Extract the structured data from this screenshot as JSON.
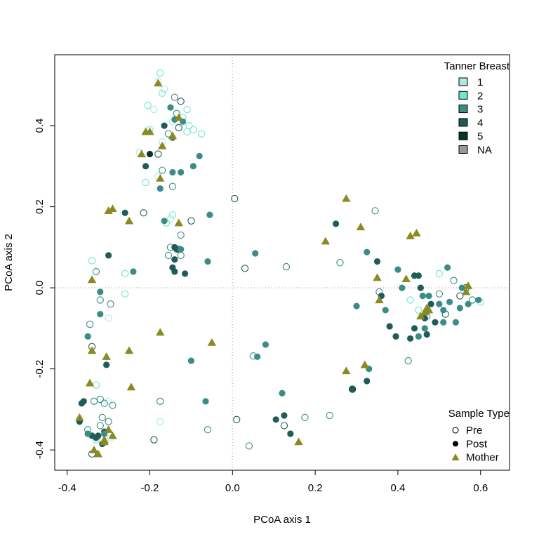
{
  "chart_data": {
    "type": "scatter",
    "title": "",
    "xlabel": "PCoA axis 1",
    "ylabel": "PCoA axis 2",
    "xlim": [
      -0.43,
      0.67
    ],
    "ylim": [
      -0.45,
      0.575
    ],
    "x_ticks": [
      -0.4,
      -0.2,
      0.0,
      0.2,
      0.4,
      0.6
    ],
    "x_tick_labels": [
      "-0.4",
      "-0.2",
      "0.0",
      "0.2",
      "0.4",
      "0.6"
    ],
    "y_ticks": [
      -0.4,
      -0.2,
      0.0,
      0.2,
      0.4
    ],
    "y_tick_labels": [
      "-0.4",
      "-0.2",
      "0.0",
      "0.2",
      "0.4"
    ],
    "reference_lines": {
      "x": 0,
      "y": 0,
      "style": "dotted",
      "color": "#bbbbbb"
    },
    "color_legend": {
      "title": "Tanner Breast",
      "position": "top-right",
      "entries": [
        {
          "label": "1",
          "color": "#aee8de"
        },
        {
          "label": "2",
          "color": "#6fe8d2"
        },
        {
          "label": "3",
          "color": "#3a8c87"
        },
        {
          "label": "4",
          "color": "#1f5c59"
        },
        {
          "label": "5",
          "color": "#0a332e"
        },
        {
          "label": "NA",
          "color": "#999999"
        }
      ]
    },
    "shape_legend": {
      "title": "Sample Type",
      "position": "bottom-right",
      "entries": [
        {
          "label": "Pre",
          "shape": "open-circle"
        },
        {
          "label": "Post",
          "shape": "filled-circle"
        },
        {
          "label": "Mother",
          "shape": "triangle"
        }
      ]
    },
    "mother_color": "#8b8a22",
    "series": [
      {
        "name": "Pre",
        "shape": "open-circle",
        "points": [
          [
            -0.175,
            0.53
          ],
          [
            -0.18,
            0.51
          ],
          [
            -0.165,
            0.49
          ],
          [
            -0.17,
            0.48
          ],
          [
            -0.14,
            0.47
          ],
          [
            -0.125,
            0.46
          ],
          [
            -0.11,
            0.44
          ],
          [
            -0.135,
            0.43
          ],
          [
            -0.12,
            0.42
          ],
          [
            -0.13,
            0.41
          ],
          [
            -0.105,
            0.4
          ],
          [
            -0.095,
            0.39
          ],
          [
            -0.075,
            0.38
          ],
          [
            -0.13,
            0.395
          ],
          [
            -0.155,
            0.38
          ],
          [
            -0.145,
            0.41
          ],
          [
            -0.19,
            0.44
          ],
          [
            -0.205,
            0.45
          ],
          [
            -0.2,
            0.39
          ],
          [
            -0.17,
            0.36
          ],
          [
            -0.11,
            0.385
          ],
          [
            -0.225,
            0.335
          ],
          [
            -0.18,
            0.33
          ],
          [
            -0.17,
            0.29
          ],
          [
            -0.18,
            0.275
          ],
          [
            -0.21,
            0.26
          ],
          [
            -0.145,
            0.25
          ],
          [
            -0.215,
            0.185
          ],
          [
            -0.145,
            0.18
          ],
          [
            -0.15,
            0.17
          ],
          [
            -0.1,
            0.165
          ],
          [
            -0.16,
            0.16
          ],
          [
            -0.125,
            0.13
          ],
          [
            -0.15,
            0.1
          ],
          [
            -0.13,
            0.095
          ],
          [
            -0.155,
            0.08
          ],
          [
            -0.125,
            0.08
          ],
          [
            0.005,
            0.22
          ],
          [
            0.03,
            0.048
          ],
          [
            0.13,
            0.052
          ],
          [
            0.26,
            0.062
          ],
          [
            0.345,
            0.19
          ],
          [
            -0.34,
            0.067
          ],
          [
            -0.33,
            0.04
          ],
          [
            -0.26,
            0.035
          ],
          [
            -0.26,
            -0.015
          ],
          [
            -0.295,
            -0.04
          ],
          [
            -0.32,
            -0.03
          ],
          [
            -0.3,
            -0.075
          ],
          [
            -0.345,
            -0.09
          ],
          [
            -0.34,
            -0.145
          ],
          [
            -0.33,
            -0.24
          ],
          [
            -0.335,
            -0.28
          ],
          [
            -0.32,
            -0.275
          ],
          [
            -0.3,
            -0.28
          ],
          [
            -0.31,
            -0.285
          ],
          [
            -0.29,
            -0.29
          ],
          [
            -0.315,
            -0.32
          ],
          [
            -0.3,
            -0.33
          ],
          [
            -0.32,
            -0.34
          ],
          [
            -0.33,
            -0.375
          ],
          [
            -0.34,
            -0.41
          ],
          [
            -0.295,
            -0.37
          ],
          [
            -0.35,
            -0.35
          ],
          [
            -0.175,
            -0.28
          ],
          [
            -0.175,
            -0.33
          ],
          [
            -0.19,
            -0.375
          ],
          [
            -0.06,
            -0.35
          ],
          [
            0.01,
            -0.325
          ],
          [
            0.05,
            -0.168
          ],
          [
            0.04,
            -0.39
          ],
          [
            0.125,
            -0.34
          ],
          [
            0.175,
            -0.32
          ],
          [
            0.235,
            -0.315
          ],
          [
            0.29,
            -0.25
          ],
          [
            0.425,
            -0.18
          ],
          [
            0.355,
            -0.01
          ],
          [
            0.45,
            -0.055
          ],
          [
            0.5,
            -0.015
          ],
          [
            0.515,
            -0.065
          ],
          [
            0.55,
            -0.02
          ],
          [
            0.565,
            0.0
          ],
          [
            0.58,
            -0.03
          ],
          [
            0.6,
            -0.035
          ],
          [
            0.5,
            0.035
          ],
          [
            0.535,
            0.018
          ],
          [
            0.47,
            -0.07
          ],
          [
            0.43,
            -0.03
          ]
        ]
      },
      {
        "name": "Post",
        "shape": "filled-circle",
        "points": [
          [
            -0.15,
            0.445
          ],
          [
            -0.14,
            0.415
          ],
          [
            -0.165,
            0.4
          ],
          [
            -0.12,
            0.41
          ],
          [
            -0.145,
            0.37
          ],
          [
            -0.2,
            0.33
          ],
          [
            -0.21,
            0.3
          ],
          [
            -0.08,
            0.325
          ],
          [
            -0.095,
            0.3
          ],
          [
            -0.145,
            0.285
          ],
          [
            -0.125,
            0.285
          ],
          [
            -0.175,
            0.245
          ],
          [
            -0.165,
            0.165
          ],
          [
            -0.055,
            0.18
          ],
          [
            -0.14,
            0.1
          ],
          [
            -0.135,
            0.095
          ],
          [
            -0.125,
            0.095
          ],
          [
            -0.14,
            0.07
          ],
          [
            -0.145,
            0.05
          ],
          [
            -0.14,
            0.04
          ],
          [
            -0.115,
            0.035
          ],
          [
            -0.06,
            0.065
          ],
          [
            -0.24,
            0.04
          ],
          [
            -0.26,
            0.185
          ],
          [
            -0.3,
            0.08
          ],
          [
            -0.32,
            -0.01
          ],
          [
            -0.32,
            -0.065
          ],
          [
            -0.35,
            -0.12
          ],
          [
            -0.305,
            -0.19
          ],
          [
            -0.36,
            -0.28
          ],
          [
            -0.365,
            -0.285
          ],
          [
            -0.37,
            -0.33
          ],
          [
            -0.34,
            -0.365
          ],
          [
            -0.325,
            -0.365
          ],
          [
            -0.31,
            -0.355
          ],
          [
            -0.31,
            -0.36
          ],
          [
            -0.33,
            -0.37
          ],
          [
            -0.35,
            -0.36
          ],
          [
            -0.315,
            -0.385
          ],
          [
            -0.1,
            -0.18
          ],
          [
            -0.065,
            -0.28
          ],
          [
            0.055,
            0.085
          ],
          [
            0.08,
            -0.14
          ],
          [
            0.06,
            -0.17
          ],
          [
            0.12,
            -0.26
          ],
          [
            0.125,
            -0.315
          ],
          [
            0.105,
            -0.325
          ],
          [
            0.14,
            -0.36
          ],
          [
            0.25,
            0.158
          ],
          [
            0.3,
            -0.045
          ],
          [
            0.325,
            -0.23
          ],
          [
            0.325,
            0.088
          ],
          [
            0.33,
            -0.2
          ],
          [
            0.35,
            0.065
          ],
          [
            0.36,
            -0.02
          ],
          [
            0.37,
            -0.055
          ],
          [
            0.38,
            -0.095
          ],
          [
            0.395,
            -0.12
          ],
          [
            0.41,
            0.0
          ],
          [
            0.4,
            0.045
          ],
          [
            0.43,
            -0.125
          ],
          [
            0.44,
            0.03
          ],
          [
            0.45,
            0.03
          ],
          [
            0.455,
            0.0
          ],
          [
            0.46,
            -0.02
          ],
          [
            0.475,
            -0.02
          ],
          [
            0.48,
            -0.04
          ],
          [
            0.49,
            -0.085
          ],
          [
            0.5,
            -0.04
          ],
          [
            0.51,
            -0.055
          ],
          [
            0.525,
            -0.035
          ],
          [
            0.54,
            -0.085
          ],
          [
            0.55,
            -0.05
          ],
          [
            0.555,
            0.0
          ],
          [
            0.57,
            -0.04
          ],
          [
            0.52,
            0.05
          ],
          [
            0.465,
            -0.075
          ],
          [
            0.44,
            -0.1
          ],
          [
            0.465,
            -0.1
          ],
          [
            0.45,
            -0.12
          ],
          [
            0.47,
            -0.115
          ],
          [
            0.29,
            -0.25
          ],
          [
            0.51,
            -0.085
          ],
          [
            0.595,
            -0.03
          ]
        ]
      },
      {
        "name": "Mother",
        "shape": "triangle",
        "points": [
          [
            -0.18,
            0.505
          ],
          [
            -0.13,
            0.42
          ],
          [
            -0.2,
            0.385
          ],
          [
            -0.21,
            0.385
          ],
          [
            -0.17,
            0.35
          ],
          [
            -0.145,
            0.375
          ],
          [
            -0.22,
            0.33
          ],
          [
            -0.175,
            0.27
          ],
          [
            -0.13,
            0.16
          ],
          [
            -0.3,
            0.19
          ],
          [
            -0.29,
            0.195
          ],
          [
            -0.25,
            0.165
          ],
          [
            -0.34,
            0.02
          ],
          [
            -0.175,
            -0.11
          ],
          [
            -0.25,
            -0.155
          ],
          [
            -0.05,
            -0.135
          ],
          [
            -0.34,
            -0.155
          ],
          [
            -0.305,
            -0.17
          ],
          [
            -0.345,
            -0.235
          ],
          [
            -0.245,
            -0.245
          ],
          [
            -0.37,
            -0.32
          ],
          [
            -0.335,
            -0.4
          ],
          [
            -0.325,
            -0.41
          ],
          [
            -0.31,
            -0.375
          ],
          [
            -0.3,
            -0.35
          ],
          [
            -0.29,
            -0.365
          ],
          [
            -0.31,
            -0.38
          ],
          [
            0.16,
            -0.38
          ],
          [
            0.225,
            0.115
          ],
          [
            0.275,
            0.22
          ],
          [
            0.31,
            0.15
          ],
          [
            0.275,
            -0.205
          ],
          [
            0.32,
            -0.19
          ],
          [
            0.355,
            -0.03
          ],
          [
            0.35,
            0.025
          ],
          [
            0.43,
            0.128
          ],
          [
            0.445,
            0.135
          ],
          [
            0.42,
            0.022
          ],
          [
            0.47,
            -0.05
          ],
          [
            0.475,
            -0.055
          ],
          [
            0.465,
            -0.06
          ],
          [
            0.455,
            -0.07
          ],
          [
            0.57,
            0.005
          ],
          [
            0.565,
            -0.01
          ]
        ]
      }
    ],
    "point_colors": {
      "Pre": [
        "#6fe8d2",
        "#aee8de",
        "#aee8de",
        "#6fe8d2",
        "#3a8c87",
        "#1f5c59",
        "#6fe8d2",
        "#3a8c87",
        "#6fe8d2",
        "#aee8de",
        "#6fe8d2",
        "#6fe8d2",
        "#6fe8d2",
        "#1f5c59",
        "#3a8c87",
        "#aee8de",
        "#aee8de",
        "#6fe8d2",
        "#6fe8d2",
        "#aee8de",
        "#6fe8d2",
        "#aee8de",
        "#1f5c59",
        "#3a8c87",
        "#aee8de",
        "#6fe8d2",
        "#3a8c87",
        "#1f5c59",
        "#6fe8d2",
        "#aee8de",
        "#1f5c59",
        "#6fe8d2",
        "#3a8c87",
        "#3a8c87",
        "#1f5c59",
        "#3a8c87",
        "#3a8c87",
        "#1f5c59",
        "#1f5c59",
        "#3a8c87",
        "#3a8c87",
        "#3a8c87",
        "#6fe8d2",
        "#3a8c87",
        "#6fe8d2",
        "#6fe8d2",
        "#3a8c87",
        "#3a8c87",
        "#aee8de",
        "#3a8c87",
        "#1f5c59",
        "#6fe8d2",
        "#3a8c87",
        "#3a8c87",
        "#aee8de",
        "#3a8c87",
        "#3a8c87",
        "#3a8c87",
        "#3a8c87",
        "#3a8c87",
        "#6fe8d2",
        "#1f5c59",
        "#aee8de",
        "#3a8c87",
        "#3a8c87",
        "#aee8de",
        "#1f5c59",
        "#3a8c87",
        "#1f5c59",
        "#3a8c87",
        "#3a8c87",
        "#1f5c59",
        "#3a8c87",
        "#3a8c87",
        "#0a332e",
        "#3a8c87",
        "#3a8c87",
        "#6fe8d2",
        "#3a8c87",
        "#1f5c59",
        "#1f5c59",
        "#0a332e",
        "#3a8c87",
        "#6fe8d2",
        "#6fe8d2",
        "#3a8c87",
        "#3a8c87",
        "#6fe8d2"
      ],
      "Post": [
        "#3a8c87",
        "#3a8c87",
        "#1f5c59",
        "#3a8c87",
        "#3a8c87",
        "#0a332e",
        "#1f5c59",
        "#3a8c87",
        "#3a8c87",
        "#3a8c87",
        "#3a8c87",
        "#3a8c87",
        "#3a8c87",
        "#3a8c87",
        "#1f5c59",
        "#1f5c59",
        "#3a8c87",
        "#1f5c59",
        "#1f5c59",
        "#1f5c59",
        "#1f5c59",
        "#3a8c87",
        "#3a8c87",
        "#1f5c59",
        "#1f5c59",
        "#3a8c87",
        "#3a8c87",
        "#3a8c87",
        "#1f5c59",
        "#1f5c59",
        "#1f5c59",
        "#1f5c59",
        "#1f5c59",
        "#1f5c59",
        "#1f5c59",
        "#3a8c87",
        "#1f5c59",
        "#3a8c87",
        "#1f5c59",
        "#3a8c87",
        "#3a8c87",
        "#3a8c87",
        "#3a8c87",
        "#3a8c87",
        "#3a8c87",
        "#1f5c59",
        "#1f5c59",
        "#1f5c59",
        "#1f5c59",
        "#3a8c87",
        "#1f5c59",
        "#3a8c87",
        "#3a8c87",
        "#1f5c59",
        "#1f5c59",
        "#3a8c87",
        "#1f5c59",
        "#1f5c59",
        "#3a8c87",
        "#3a8c87",
        "#1f5c59",
        "#1f5c59",
        "#1f5c59",
        "#1f5c59",
        "#3a8c87",
        "#3a8c87",
        "#1f5c59",
        "#1f5c59",
        "#3a8c87",
        "#3a8c87",
        "#3a8c87",
        "#3a8c87",
        "#3a8c87",
        "#3a8c87",
        "#3a8c87",
        "#3a8c87",
        "#1f5c59",
        "#1f5c59",
        "#3a8c87",
        "#3a8c87",
        "#1f5c59",
        "#1f5c59",
        "#3a8c87",
        "#3a8c87"
      ]
    }
  }
}
